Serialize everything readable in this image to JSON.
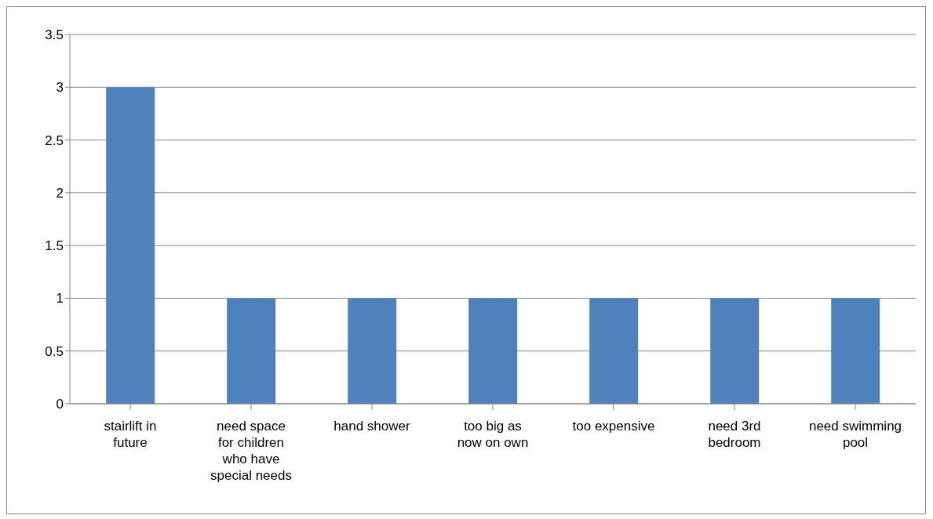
{
  "chart_data": {
    "type": "bar",
    "categories": [
      "stairlift in future",
      "need space for children who have special needs",
      "hand shower",
      "too big as now on own",
      "too expensive",
      "need 3rd bedroom",
      "need swimming pool"
    ],
    "values": [
      3,
      1,
      1,
      1,
      1,
      1,
      1
    ],
    "color": "#4f81bd",
    "ylim": [
      0,
      3.5
    ],
    "yticks": [
      0,
      0.5,
      1,
      1.5,
      2,
      2.5,
      3,
      3.5
    ],
    "grid": "y",
    "legend": false
  }
}
